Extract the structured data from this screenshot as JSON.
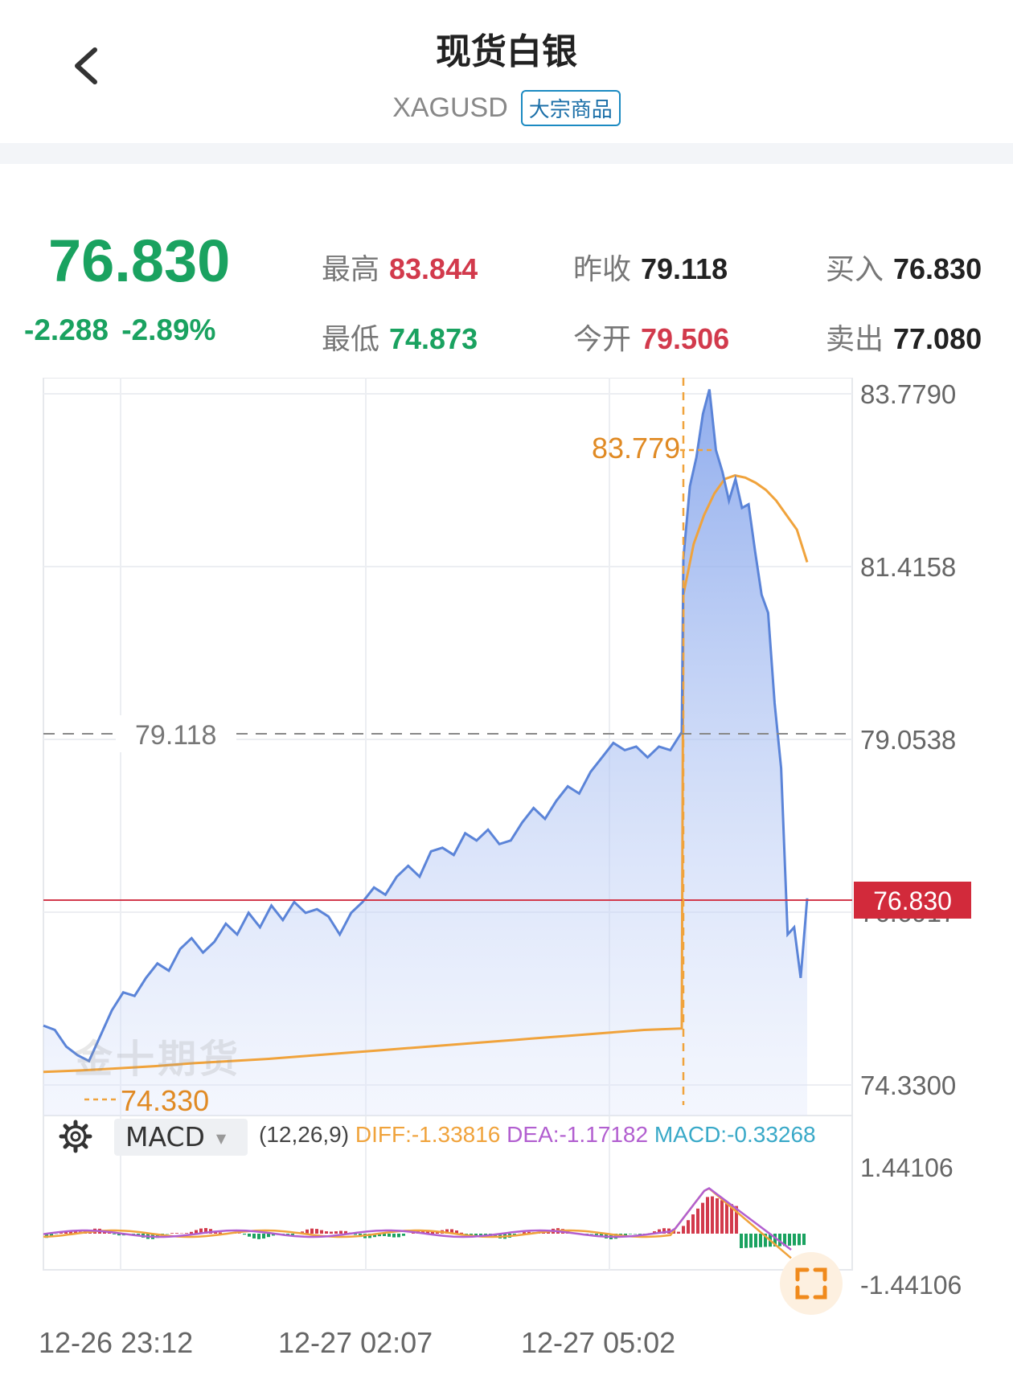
{
  "header": {
    "title": "现货白银",
    "symbol": "XAGUSD",
    "badge": "大宗商品"
  },
  "quote": {
    "price": "76.830",
    "change": "-2.288",
    "change_pct": "-2.89%",
    "high_label": "最高",
    "high": "83.844",
    "low_label": "最低",
    "low": "74.873",
    "prev_close_label": "昨收",
    "prev_close": "79.118",
    "open_label": "今开",
    "open": "79.506",
    "bid_label": "买入",
    "bid": "76.830",
    "ask_label": "卖出",
    "ask": "77.080"
  },
  "colors": {
    "up": "#d23a4c",
    "down": "#1aa260",
    "line": "#5b84d8",
    "avg": "#f0a33c"
  },
  "watermark": "金十期货",
  "macd": {
    "indicator": "MACD",
    "params": "(12,26,9)",
    "diff": "DIFF:-1.33816",
    "dea": "DEA:-1.17182",
    "macd": "MACD:-0.33268",
    "axis_max": "1.44106",
    "axis_min": "-1.44106"
  },
  "chart_data": {
    "type": "line",
    "y_axis_labels": [
      "83.7790",
      "81.4158",
      "79.0538",
      "76.6917",
      "74.3300"
    ],
    "ylim": [
      74.33,
      83.779
    ],
    "prev_close_line": {
      "label": "79.118",
      "value": 79.118
    },
    "current_price_tag": "76.830",
    "max_marker": "83.779",
    "min_marker": "74.330",
    "x_labels": [
      "12-26 23:12",
      "12-27 02:07",
      "12-27 05:02"
    ],
    "series": [
      {
        "values": [
          75.04,
          74.98,
          74.75,
          74.63,
          74.55,
          74.9,
          75.25,
          75.5,
          75.45,
          75.7,
          75.9,
          75.8,
          76.1,
          76.25,
          76.05,
          76.2,
          76.45,
          76.3,
          76.6,
          76.4,
          76.7,
          76.5,
          76.75,
          76.6,
          76.65,
          76.55,
          76.3,
          76.6,
          76.75,
          76.95,
          76.85,
          77.1,
          77.25,
          77.1,
          77.45,
          77.5,
          77.4,
          77.7,
          77.6,
          77.75,
          77.55,
          77.6,
          77.85,
          78.05,
          77.9,
          78.15,
          78.35,
          78.25,
          78.55,
          78.75,
          78.95,
          78.85,
          78.9,
          78.75,
          78.9,
          78.85,
          79.1,
          81.5,
          82.5,
          82.9,
          83.5,
          83.84,
          83.0,
          82.7,
          82.3,
          82.6,
          82.2,
          82.25,
          81.6,
          81.0,
          80.75,
          79.5,
          78.6,
          76.3,
          76.4,
          75.7,
          76.8
        ]
      },
      {
        "values": [
          74.4,
          74.42,
          74.45,
          74.48,
          74.52,
          74.55,
          74.58,
          74.62,
          74.66,
          74.7,
          74.74,
          74.78,
          74.82,
          74.86,
          74.9,
          74.94,
          74.98,
          75.0,
          81.0,
          81.7,
          82.1,
          82.4,
          82.6,
          82.65,
          82.62,
          82.55,
          82.45,
          82.3,
          82.1,
          81.9,
          81.45
        ]
      }
    ]
  }
}
